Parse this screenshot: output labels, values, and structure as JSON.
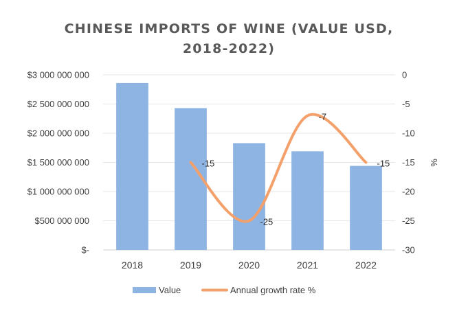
{
  "chart_data": {
    "type": "bar+line",
    "title_lines": [
      "CHINESE IMPORTS OF WINE (VALUE USD,",
      "2018-2022)"
    ],
    "categories": [
      "2018",
      "2019",
      "2020",
      "2021",
      "2022"
    ],
    "series": [
      {
        "name": "Value",
        "type": "bar",
        "axis": "left",
        "color": "#8DB4E2",
        "values": [
          2860000000,
          2430000000,
          1830000000,
          1690000000,
          1440000000
        ]
      },
      {
        "name": "Annual growth rate %",
        "type": "line",
        "axis": "right",
        "color": "#F4A06A",
        "values": [
          null,
          -15,
          -25,
          -7,
          -15
        ],
        "data_labels": [
          "",
          "-15",
          "-25",
          "-7",
          "-15"
        ]
      }
    ],
    "left_axis": {
      "ylim": [
        0,
        3000000000
      ],
      "tick_labels": [
        "$-",
        "$500 000 000",
        "$1 000 000 000",
        "$1 500 000 000",
        "$2 000 000 000",
        "$2 500 000 000",
        "$3 000 000 000"
      ]
    },
    "right_axis": {
      "ylim": [
        -30,
        0
      ],
      "label": "%",
      "tick_labels": [
        "-30",
        "-25",
        "-20",
        "-15",
        "-10",
        "-5",
        "0"
      ]
    },
    "grid": true,
    "legend": "bottom"
  }
}
